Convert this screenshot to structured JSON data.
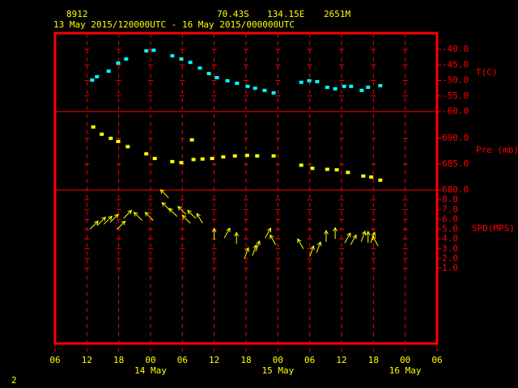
{
  "chart_data": {
    "type": "station-plot",
    "header": {
      "station": "8912",
      "latitude": "70.43S",
      "longitude": "134.15E",
      "elevation": "2651M",
      "period": "13 May 2015/120000UTC - 16 May 2015/000000UTC"
    },
    "xlim": [
      6,
      78
    ],
    "xticks": [
      {
        "value": 6,
        "label": "06"
      },
      12,
      18,
      {
        "value": 24,
        "label": "00"
      },
      {
        "value": 30,
        "label": "06"
      },
      {
        "value": 36,
        "label": "12"
      },
      {
        "value": 42,
        "label": "18"
      },
      {
        "value": 48,
        "label": "00"
      },
      {
        "value": 54,
        "label": "06"
      },
      {
        "value": 60,
        "label": "12"
      },
      {
        "value": 66,
        "label": "18"
      },
      {
        "value": 72,
        "label": "00"
      },
      {
        "value": 78,
        "label": "06"
      }
    ],
    "day_labels": [
      {
        "value": 24,
        "label": "14 May"
      },
      {
        "value": 48,
        "label": "15 May"
      },
      {
        "value": 72,
        "label": "16 May"
      }
    ],
    "footer": "2",
    "panels": [
      {
        "type": "scatter",
        "label": "T(C)",
        "color": "#00ffff",
        "x": [
          13,
          13.9,
          16.1,
          17.9,
          19.4,
          23.2,
          24.6,
          28.1,
          29.8,
          31.5,
          33.3,
          35,
          36.5,
          38.5,
          40.3,
          42.3,
          43.7,
          45.5,
          47.2,
          52.4,
          53.9,
          55.4,
          57.3,
          58.8,
          60.5,
          61.8,
          63.8,
          65,
          67.3
        ],
        "values": [
          -49.9,
          -48.8,
          -47,
          -44.4,
          -43.1,
          -40.5,
          -40.3,
          -42.1,
          -43.1,
          -44.2,
          -46,
          -47.8,
          -49.1,
          -50.1,
          -50.9,
          -51.9,
          -52.5,
          -53.2,
          -54,
          -50.6,
          -50.1,
          -50.4,
          -52.2,
          -52.7,
          -51.9,
          -51.9,
          -53.2,
          -52.2,
          -51.7
        ],
        "ylim": [
          -60,
          -34.8
        ],
        "yticks": [
          {
            "value": -60,
            "label": "-60.0"
          },
          {
            "value": -55,
            "label": "-55.0"
          },
          {
            "value": -50,
            "label": "-50.0"
          },
          {
            "value": -45,
            "label": "-45.0"
          },
          {
            "value": -40,
            "label": "-40.0"
          }
        ]
      },
      {
        "type": "scatter",
        "label": "Pre (mb)",
        "color": "#ffff00",
        "x": [
          13.2,
          14.8,
          16.5,
          17.9,
          19.7,
          23.2,
          24.8,
          28.1,
          29.8,
          31.8,
          32.1,
          33.8,
          35.6,
          37.7,
          39.9,
          42.2,
          44.1,
          47.2,
          52.4,
          54.5,
          57.3,
          59.1,
          61.2,
          64.1,
          65.6,
          67.3
        ],
        "values": [
          692.2,
          690.8,
          690,
          689.4,
          688.4,
          687,
          686.1,
          685.5,
          685.3,
          689.7,
          685.9,
          686,
          686.1,
          686.4,
          686.6,
          686.7,
          686.6,
          686.6,
          684.8,
          684.2,
          684,
          683.9,
          683.4,
          682.7,
          682.5,
          681.9
        ],
        "ylim": [
          680,
          695.2
        ],
        "yticks": [
          {
            "value": 680,
            "label": "680.0"
          },
          {
            "value": 685,
            "label": "685.0"
          },
          {
            "value": 690,
            "label": "690.0"
          }
        ]
      },
      {
        "type": "vector",
        "label": "SPD(MPS)",
        "color": "#ffff00",
        "x": [
          12.6,
          14,
          15.2,
          16.4,
          17.7,
          18.9,
          22.4,
          24.5,
          27.4,
          27.7,
          29,
          30.7,
          31.5,
          32.5,
          33.8,
          36,
          37.9,
          40.2,
          41.7,
          43.2,
          43.8,
          45.6,
          47.6,
          52.8,
          54,
          55.3,
          57.1,
          58.8,
          60.6,
          61.7,
          63.7,
          65,
          65.5,
          66.9
        ],
        "values": [
          5,
          5.4,
          5.5,
          5.7,
          5,
          6.1,
          5.9,
          5.9,
          8.2,
          6.9,
          6.3,
          6.5,
          5.6,
          6.1,
          5.6,
          3.9,
          4.1,
          3.5,
          2,
          2.3,
          2.7,
          4.1,
          3.4,
          3,
          2.2,
          2.6,
          3.7,
          4,
          3.6,
          3.4,
          3.7,
          3.6,
          3.6,
          3.3
        ],
        "directions": [
          45,
          45,
          45,
          45,
          45,
          45,
          315,
          315,
          315,
          315,
          315,
          315,
          315,
          315,
          330,
          0,
          30,
          0,
          20,
          20,
          20,
          30,
          330,
          330,
          20,
          20,
          0,
          0,
          30,
          30,
          20,
          0,
          20,
          330
        ],
        "ylim": [
          1,
          9
        ],
        "yticks": [
          {
            "value": 1,
            "label": "1.0"
          },
          {
            "value": 2,
            "label": "2.0"
          },
          {
            "value": 3,
            "label": "3.0"
          },
          {
            "value": 4,
            "label": "4.0"
          },
          {
            "value": 5,
            "label": "5.0"
          },
          {
            "value": 6,
            "label": "6.0"
          },
          {
            "value": 7,
            "label": "7.0"
          },
          {
            "value": 8,
            "label": "8.0"
          }
        ]
      }
    ]
  }
}
